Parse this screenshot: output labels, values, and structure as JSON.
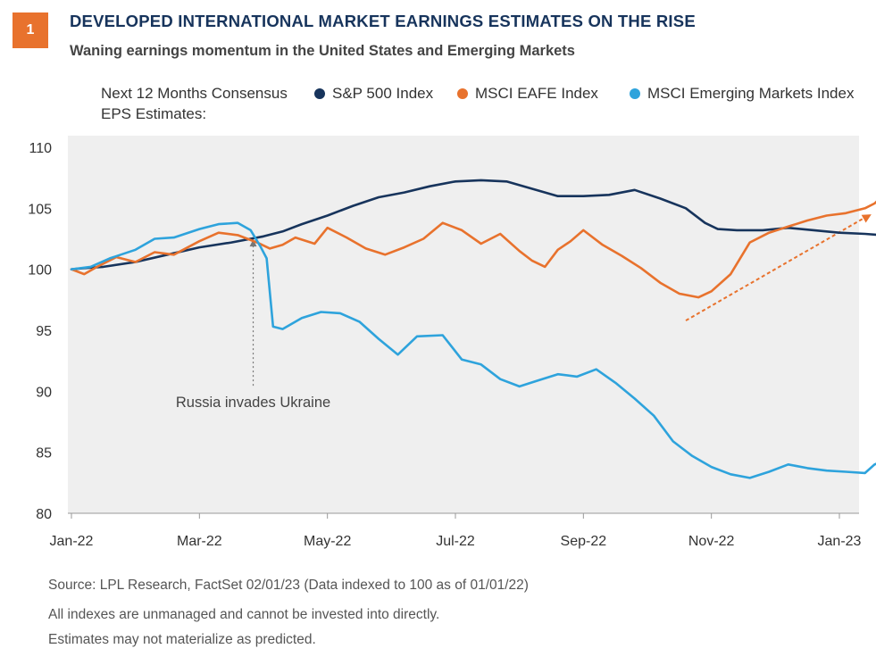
{
  "header": {
    "badge": "1",
    "title": "DEVELOPED INTERNATIONAL MARKET EARNINGS ESTIMATES ON THE RISE",
    "subtitle": "Waning earnings momentum in the United States and Emerging Markets"
  },
  "legend": {
    "lead": "Next 12 Months Consensus EPS Estimates:",
    "items": [
      {
        "label": "S&P 500 Index",
        "color": "#17345c"
      },
      {
        "label": "MSCI EAFE Index",
        "color": "#e8722d"
      },
      {
        "label": "MSCI Emerging Markets Index",
        "color": "#2ea3dc"
      }
    ]
  },
  "annotation": "Russia invades Ukraine",
  "footer": {
    "source": "Source: LPL Research, FactSet  02/01/23  (Data indexed to 100 as of 01/01/22)",
    "note1": "All indexes are unmanaged and cannot be invested into directly.",
    "note2": "Estimates may not materialize as predicted."
  },
  "chart_data": {
    "type": "line",
    "ylim": [
      80,
      110
    ],
    "yticks": [
      80,
      85,
      90,
      95,
      100,
      105,
      110
    ],
    "xticks": [
      "Jan-22",
      "Mar-22",
      "May-22",
      "Jul-22",
      "Sep-22",
      "Nov-22",
      "Jan-23"
    ],
    "grid": false,
    "legend_position": "top",
    "annotation": {
      "text": "Russia invades Ukraine",
      "x": 2.84,
      "y": 102.6
    },
    "trend_arrow": {
      "from": [
        9.6,
        95.8
      ],
      "to": [
        12.5,
        104.5
      ],
      "color": "#e8722d"
    },
    "series": [
      {
        "name": "S&P 500 Index",
        "color": "#17345c",
        "x": [
          0,
          0.2,
          0.5,
          1.0,
          1.5,
          2.0,
          2.5,
          3.0,
          3.3,
          3.6,
          4.0,
          4.4,
          4.8,
          5.2,
          5.6,
          6.0,
          6.4,
          6.8,
          7.2,
          7.6,
          8.0,
          8.4,
          8.8,
          9.2,
          9.6,
          9.9,
          10.1,
          10.4,
          10.8,
          11.2,
          11.6,
          12.0,
          12.4,
          12.65
        ],
        "values": [
          100,
          100.1,
          100.2,
          100.6,
          101.2,
          101.8,
          102.2,
          102.7,
          103.1,
          103.7,
          104.4,
          105.2,
          105.9,
          106.3,
          106.8,
          107.2,
          107.3,
          107.2,
          106.6,
          106.0,
          106.0,
          106.1,
          106.5,
          105.8,
          105.0,
          103.8,
          103.3,
          103.2,
          103.2,
          103.4,
          103.2,
          103.0,
          102.9,
          102.8
        ]
      },
      {
        "name": "MSCI EAFE Index",
        "color": "#e8722d",
        "x": [
          0,
          0.2,
          0.4,
          0.7,
          1.0,
          1.3,
          1.6,
          2.0,
          2.3,
          2.6,
          2.9,
          3.1,
          3.3,
          3.5,
          3.8,
          4.0,
          4.3,
          4.6,
          4.9,
          5.2,
          5.5,
          5.8,
          6.1,
          6.4,
          6.7,
          7.0,
          7.2,
          7.4,
          7.6,
          7.8,
          8.0,
          8.3,
          8.6,
          8.9,
          9.2,
          9.5,
          9.8,
          10.0,
          10.3,
          10.6,
          10.9,
          11.2,
          11.5,
          11.8,
          12.1,
          12.4,
          12.55,
          12.65
        ],
        "values": [
          100,
          99.6,
          100.2,
          101.0,
          100.6,
          101.4,
          101.2,
          102.3,
          103.0,
          102.8,
          102.2,
          101.7,
          102.0,
          102.6,
          102.1,
          103.4,
          102.6,
          101.7,
          101.2,
          101.8,
          102.5,
          103.8,
          103.2,
          102.1,
          102.9,
          101.5,
          100.7,
          100.2,
          101.6,
          102.3,
          103.2,
          102.0,
          101.1,
          100.1,
          98.9,
          98.0,
          97.7,
          98.2,
          99.6,
          102.2,
          103.0,
          103.5,
          104.0,
          104.4,
          104.6,
          105.0,
          105.4,
          105.9
        ]
      },
      {
        "name": "MSCI Emerging Markets Index",
        "color": "#2ea3dc",
        "x": [
          0,
          0.3,
          0.6,
          1.0,
          1.3,
          1.6,
          2.0,
          2.3,
          2.6,
          2.8,
          2.95,
          3.05,
          3.15,
          3.3,
          3.6,
          3.9,
          4.2,
          4.5,
          4.8,
          5.1,
          5.4,
          5.8,
          6.1,
          6.4,
          6.7,
          7.0,
          7.3,
          7.6,
          7.9,
          8.2,
          8.5,
          8.8,
          9.1,
          9.4,
          9.7,
          10.0,
          10.3,
          10.6,
          10.9,
          11.2,
          11.5,
          11.8,
          12.1,
          12.4,
          12.55,
          12.65
        ],
        "values": [
          100,
          100.2,
          100.9,
          101.6,
          102.5,
          102.6,
          103.3,
          103.7,
          103.8,
          103.2,
          101.9,
          100.9,
          95.3,
          95.1,
          96.0,
          96.5,
          96.4,
          95.7,
          94.3,
          93.0,
          94.5,
          94.6,
          92.6,
          92.2,
          91.0,
          90.4,
          90.9,
          91.4,
          91.2,
          91.8,
          90.7,
          89.4,
          88.0,
          85.9,
          84.7,
          83.8,
          83.2,
          82.9,
          83.4,
          84.0,
          83.7,
          83.5,
          83.4,
          83.3,
          84.0,
          84.2
        ]
      }
    ]
  }
}
